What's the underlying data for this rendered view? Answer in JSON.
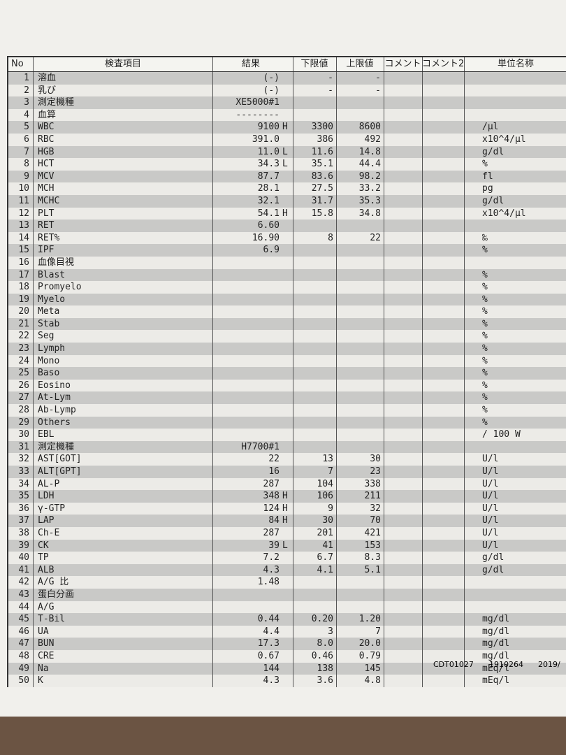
{
  "header": {
    "columns": [
      "No",
      "検査項目",
      "結果",
      "下限値",
      "上限値",
      "コメント",
      "コメント2",
      "単位名称"
    ]
  },
  "table": {
    "rows": [
      {
        "no": "1",
        "item": "溶血",
        "result": "(-)",
        "low": "-",
        "high": "-"
      },
      {
        "no": "2",
        "item": "乳び",
        "result": "(-)",
        "low": "-",
        "high": "-"
      },
      {
        "no": "3",
        "item": "測定機種",
        "result": "XE5000#1"
      },
      {
        "no": "4",
        "item": "血算",
        "result": "--------"
      },
      {
        "no": "5",
        "item": "WBC",
        "result": "9100",
        "flag": "H",
        "low": "3300",
        "high": "8600",
        "unit": "/μl"
      },
      {
        "no": "6",
        "item": "RBC",
        "result": "391.0",
        "low": "386",
        "high": "492",
        "unit": "x10^4/μl"
      },
      {
        "no": "7",
        "item": "HGB",
        "result": "11.0",
        "flag": "L",
        "low": "11.6",
        "high": "14.8",
        "unit": "g/dl"
      },
      {
        "no": "8",
        "item": "HCT",
        "result": "34.3",
        "flag": "L",
        "low": "35.1",
        "high": "44.4",
        "unit": "%"
      },
      {
        "no": "9",
        "item": "MCV",
        "result": "87.7",
        "low": "83.6",
        "high": "98.2",
        "unit": "fl"
      },
      {
        "no": "10",
        "item": "MCH",
        "result": "28.1",
        "low": "27.5",
        "high": "33.2",
        "unit": "pg"
      },
      {
        "no": "11",
        "item": "MCHC",
        "result": "32.1",
        "low": "31.7",
        "high": "35.3",
        "unit": "g/dl"
      },
      {
        "no": "12",
        "item": "PLT",
        "result": "54.1",
        "flag": "H",
        "low": "15.8",
        "high": "34.8",
        "unit": "x10^4/μl"
      },
      {
        "no": "13",
        "item": "RET",
        "result": "6.60"
      },
      {
        "no": "14",
        "item": "RET%",
        "result": "16.90",
        "low": "8",
        "high": "22",
        "unit": "‰"
      },
      {
        "no": "15",
        "item": "IPF",
        "result": "6.9",
        "unit": "%"
      },
      {
        "no": "16",
        "item": "血像目視"
      },
      {
        "no": "17",
        "item": "Blast",
        "unit": "%"
      },
      {
        "no": "18",
        "item": "Promyelo",
        "unit": "%"
      },
      {
        "no": "19",
        "item": "Myelo",
        "unit": "%"
      },
      {
        "no": "20",
        "item": "Meta",
        "unit": "%"
      },
      {
        "no": "21",
        "item": "Stab",
        "unit": "%"
      },
      {
        "no": "22",
        "item": "Seg",
        "unit": "%"
      },
      {
        "no": "23",
        "item": "Lymph",
        "unit": "%"
      },
      {
        "no": "24",
        "item": "Mono",
        "unit": "%"
      },
      {
        "no": "25",
        "item": "Baso",
        "unit": "%"
      },
      {
        "no": "26",
        "item": "Eosino",
        "unit": "%"
      },
      {
        "no": "27",
        "item": "At-Lym",
        "unit": "%"
      },
      {
        "no": "28",
        "item": "Ab-Lymp",
        "unit": "%"
      },
      {
        "no": "29",
        "item": "Others",
        "unit": "%"
      },
      {
        "no": "30",
        "item": "EBL",
        "unit": "/ 100 W"
      },
      {
        "no": "31",
        "item": "測定機種",
        "result": "H7700#1"
      },
      {
        "no": "32",
        "item": "AST[GOT]",
        "result": "22",
        "low": "13",
        "high": "30",
        "unit": "U/l"
      },
      {
        "no": "33",
        "item": "ALT[GPT]",
        "result": "16",
        "low": "7",
        "high": "23",
        "unit": "U/l"
      },
      {
        "no": "34",
        "item": "AL-P",
        "result": "287",
        "low": "104",
        "high": "338",
        "unit": "U/l"
      },
      {
        "no": "35",
        "item": "LDH",
        "result": "348",
        "flag": "H",
        "low": "106",
        "high": "211",
        "unit": "U/l"
      },
      {
        "no": "36",
        "item": "γ-GTP",
        "result": "124",
        "flag": "H",
        "low": "9",
        "high": "32",
        "unit": "U/l"
      },
      {
        "no": "37",
        "item": "LAP",
        "result": "84",
        "flag": "H",
        "low": "30",
        "high": "70",
        "unit": "U/l"
      },
      {
        "no": "38",
        "item": "Ch-E",
        "result": "287",
        "low": "201",
        "high": "421",
        "unit": "U/l"
      },
      {
        "no": "39",
        "item": "CK",
        "result": "39",
        "flag": "L",
        "low": "41",
        "high": "153",
        "unit": "U/l"
      },
      {
        "no": "40",
        "item": "TP",
        "result": "7.2",
        "low": "6.7",
        "high": "8.3",
        "unit": "g/dl"
      },
      {
        "no": "41",
        "item": "ALB",
        "result": "4.3",
        "low": "4.1",
        "high": "5.1",
        "unit": "g/dl"
      },
      {
        "no": "42",
        "item": "A/G 比",
        "result": "1.48"
      },
      {
        "no": "43",
        "item": "蛋白分画"
      },
      {
        "no": "44",
        "item": "A/G"
      },
      {
        "no": "45",
        "item": "T-Bil",
        "result": "0.44",
        "low": "0.20",
        "high": "1.20",
        "unit": "mg/dl"
      },
      {
        "no": "46",
        "item": "UA",
        "result": "4.4",
        "low": "3",
        "high": "7",
        "unit": "mg/dl"
      },
      {
        "no": "47",
        "item": "BUN",
        "result": "17.3",
        "low": "8.0",
        "high": "20.0",
        "unit": "mg/dl"
      },
      {
        "no": "48",
        "item": "CRE",
        "result": "0.67",
        "low": "0.46",
        "high": "0.79",
        "unit": "mg/dl"
      },
      {
        "no": "49",
        "item": "Na",
        "result": "144",
        "low": "138",
        "high": "145",
        "unit": "mEq/l"
      },
      {
        "no": "50",
        "item": "K",
        "result": "4.3",
        "low": "3.6",
        "high": "4.8",
        "unit": "mEq/l"
      }
    ]
  },
  "footer": {
    "codes": [
      "CDT01027",
      "1910264",
      "2019/"
    ]
  }
}
